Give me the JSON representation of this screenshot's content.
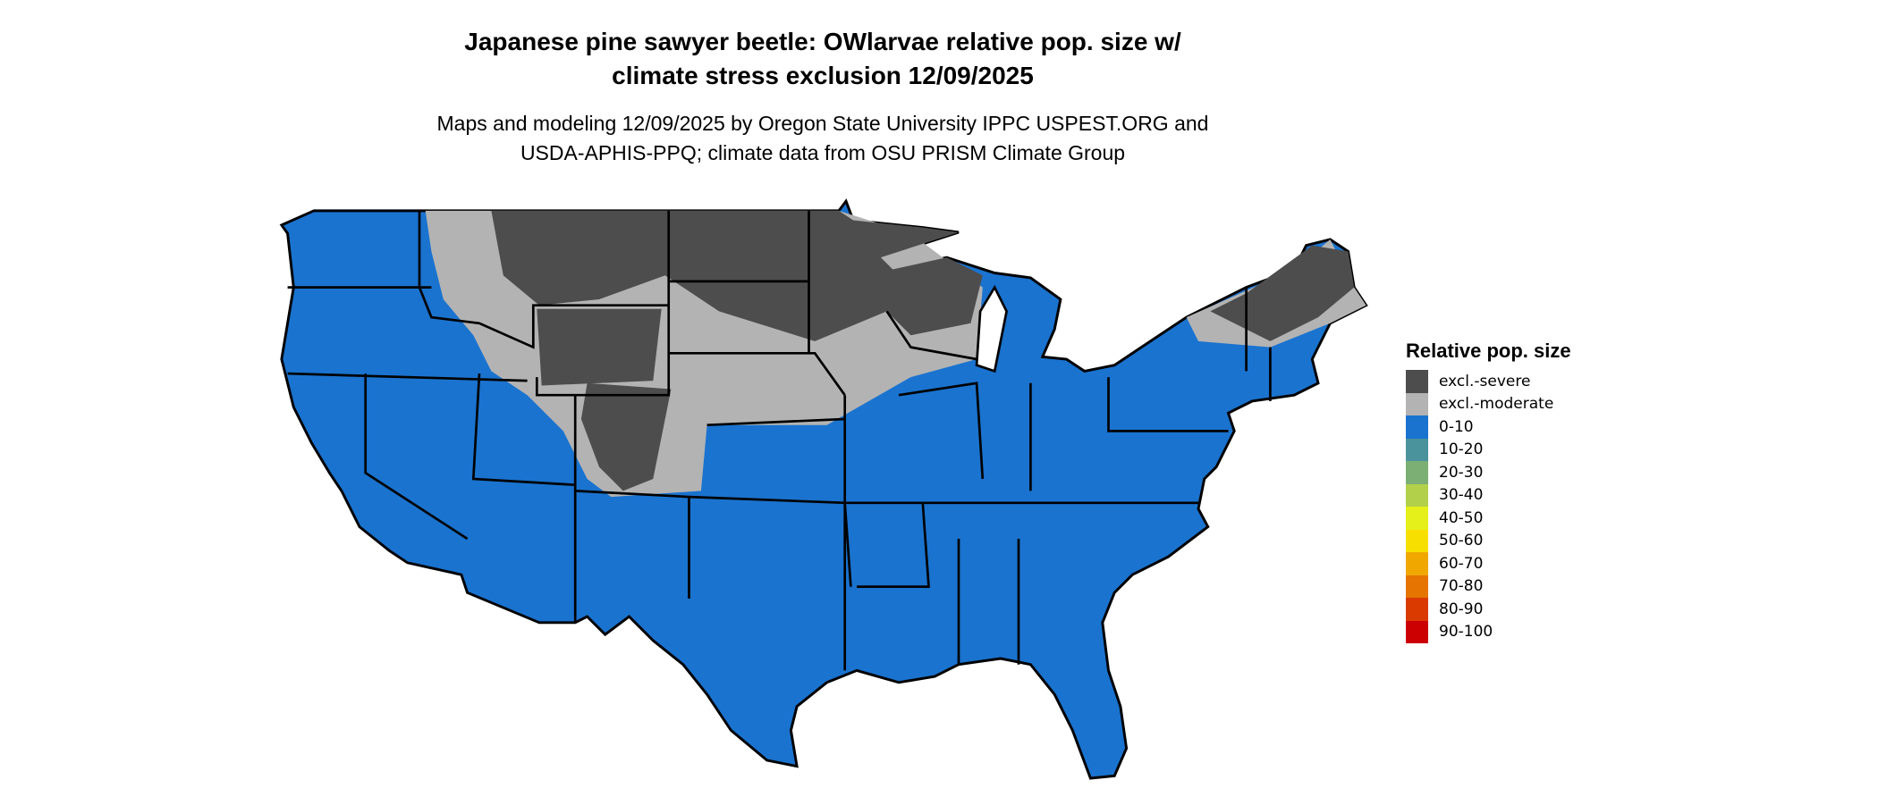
{
  "title_lines": [
    "Japanese pine sawyer beetle: OWlarvae relative pop. size w/",
    "climate stress exclusion 12/09/2025"
  ],
  "subtitle_lines": [
    "Maps and modeling 12/09/2025 by Oregon State University IPPC USPEST.ORG and",
    "USDA-APHIS-PPQ; climate data from OSU PRISM Climate Group"
  ],
  "legend": {
    "title": "Relative pop. size",
    "items": [
      {
        "label": "excl.-severe",
        "color": "#4d4d4d"
      },
      {
        "label": "excl.-moderate",
        "color": "#b3b3b3"
      },
      {
        "label": "0-10",
        "color": "#1a73cf"
      },
      {
        "label": "10-20",
        "color": "#4a929c"
      },
      {
        "label": "20-30",
        "color": "#7caf74"
      },
      {
        "label": "30-40",
        "color": "#b3d04a"
      },
      {
        "label": "40-50",
        "color": "#e5f01a"
      },
      {
        "label": "50-60",
        "color": "#f7e000"
      },
      {
        "label": "60-70",
        "color": "#f0a800"
      },
      {
        "label": "70-80",
        "color": "#e57400"
      },
      {
        "label": "80-90",
        "color": "#da3a00"
      },
      {
        "label": "90-100",
        "color": "#cc0000"
      }
    ]
  }
}
